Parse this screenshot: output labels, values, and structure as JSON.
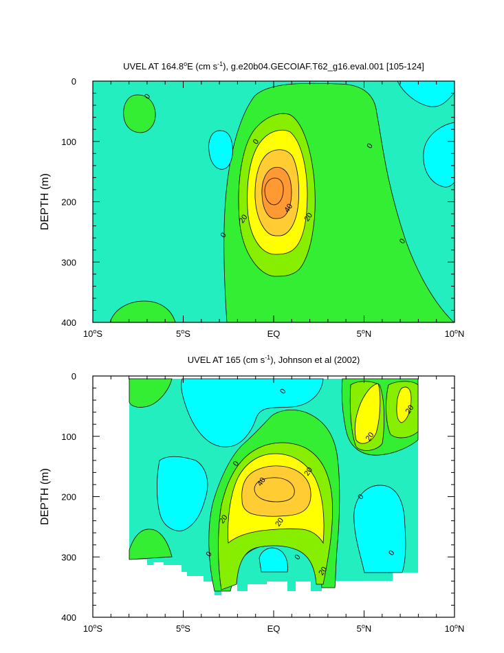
{
  "colors": {
    "neg_cyan": "#00ffff",
    "neg_aqua": "#00f0d8",
    "teal_base": "#22eec0",
    "green_0_10": "#33ee33",
    "green_10_20": "#88ee00",
    "yellow_20_30": "#ffff00",
    "gold_30_40": "#ffcc33",
    "orange_40_50": "#ff9933",
    "line": "#000000"
  },
  "chart_data": [
    {
      "type": "contour",
      "title_main": "UVEL AT 164.8",
      "title_sup": "o",
      "title_rest": "E (cm s",
      "title_sup2": "-1",
      "title_tail": "), g.e20b04.GECOIAF.T62_g16.eval.001 [105-124]",
      "ylabel": "DEPTH (m)",
      "xlim": [
        -10,
        10
      ],
      "ylim": [
        0,
        400
      ],
      "x_ticks": [
        {
          "v": -10,
          "num": "10",
          "sup": "o",
          "hem": "S"
        },
        {
          "v": -5,
          "num": "5",
          "sup": "o",
          "hem": "S"
        },
        {
          "v": 0,
          "num": "EQ",
          "sup": "",
          "hem": ""
        },
        {
          "v": 5,
          "num": "5",
          "sup": "o",
          "hem": "N"
        },
        {
          "v": 10,
          "num": "10",
          "sup": "o",
          "hem": "N"
        }
      ],
      "y_ticks": [
        "0",
        "100",
        "200",
        "300",
        "400"
      ],
      "y_tick_values": [
        0,
        100,
        200,
        300,
        400
      ],
      "contour_labels": [
        {
          "text": "0",
          "x": -7.0,
          "y": 25
        },
        {
          "text": "0",
          "x": -1.0,
          "y": 100
        },
        {
          "text": "0",
          "x": 5.3,
          "y": 107
        },
        {
          "text": "0",
          "x": -2.8,
          "y": 255
        },
        {
          "text": "0",
          "x": 7.1,
          "y": 265
        },
        {
          "text": "40",
          "x": 0.8,
          "y": 210
        },
        {
          "text": "20",
          "x": -1.7,
          "y": 228
        },
        {
          "text": "20",
          "x": 1.9,
          "y": 225
        }
      ],
      "core_max_depth": 180,
      "core_max_value": 50
    },
    {
      "type": "contour",
      "title_main": "UVEL AT 165 (cm s",
      "title_sup": "-1",
      "title_tail": "), Johnson et al (2002)",
      "ylabel": "DEPTH (m)",
      "xlim": [
        -10,
        10
      ],
      "ylim": [
        0,
        400
      ],
      "x_ticks": [
        {
          "v": -10,
          "num": "10",
          "sup": "o",
          "hem": "S"
        },
        {
          "v": -5,
          "num": "5",
          "sup": "o",
          "hem": "S"
        },
        {
          "v": 0,
          "num": "EQ",
          "sup": "",
          "hem": ""
        },
        {
          "v": 5,
          "num": "5",
          "sup": "o",
          "hem": "N"
        },
        {
          "v": 10,
          "num": "10",
          "sup": "o",
          "hem": "N"
        }
      ],
      "y_ticks": [
        "0",
        "100",
        "200",
        "300",
        "400"
      ],
      "y_tick_values": [
        0,
        100,
        200,
        300,
        400
      ],
      "data_coverage_x": [
        -8,
        8
      ],
      "contour_labels": [
        {
          "text": "0",
          "x": 0.5,
          "y": 25
        },
        {
          "text": "20",
          "x": 7.5,
          "y": 55
        },
        {
          "text": "20",
          "x": 5.3,
          "y": 100
        },
        {
          "text": "0",
          "x": -2.1,
          "y": 145
        },
        {
          "text": "40",
          "x": -0.7,
          "y": 175
        },
        {
          "text": "20",
          "x": 1.9,
          "y": 158
        },
        {
          "text": "0",
          "x": 4.8,
          "y": 200
        },
        {
          "text": "20",
          "x": -2.8,
          "y": 237
        },
        {
          "text": "20",
          "x": 0.3,
          "y": 242
        },
        {
          "text": "0",
          "x": -3.6,
          "y": 295
        },
        {
          "text": "0",
          "x": 1.3,
          "y": 300
        },
        {
          "text": "0",
          "x": 6.5,
          "y": 293
        },
        {
          "text": "20",
          "x": 2.7,
          "y": 323
        }
      ],
      "core_max_depth": 185,
      "core_max_value": 50
    }
  ]
}
